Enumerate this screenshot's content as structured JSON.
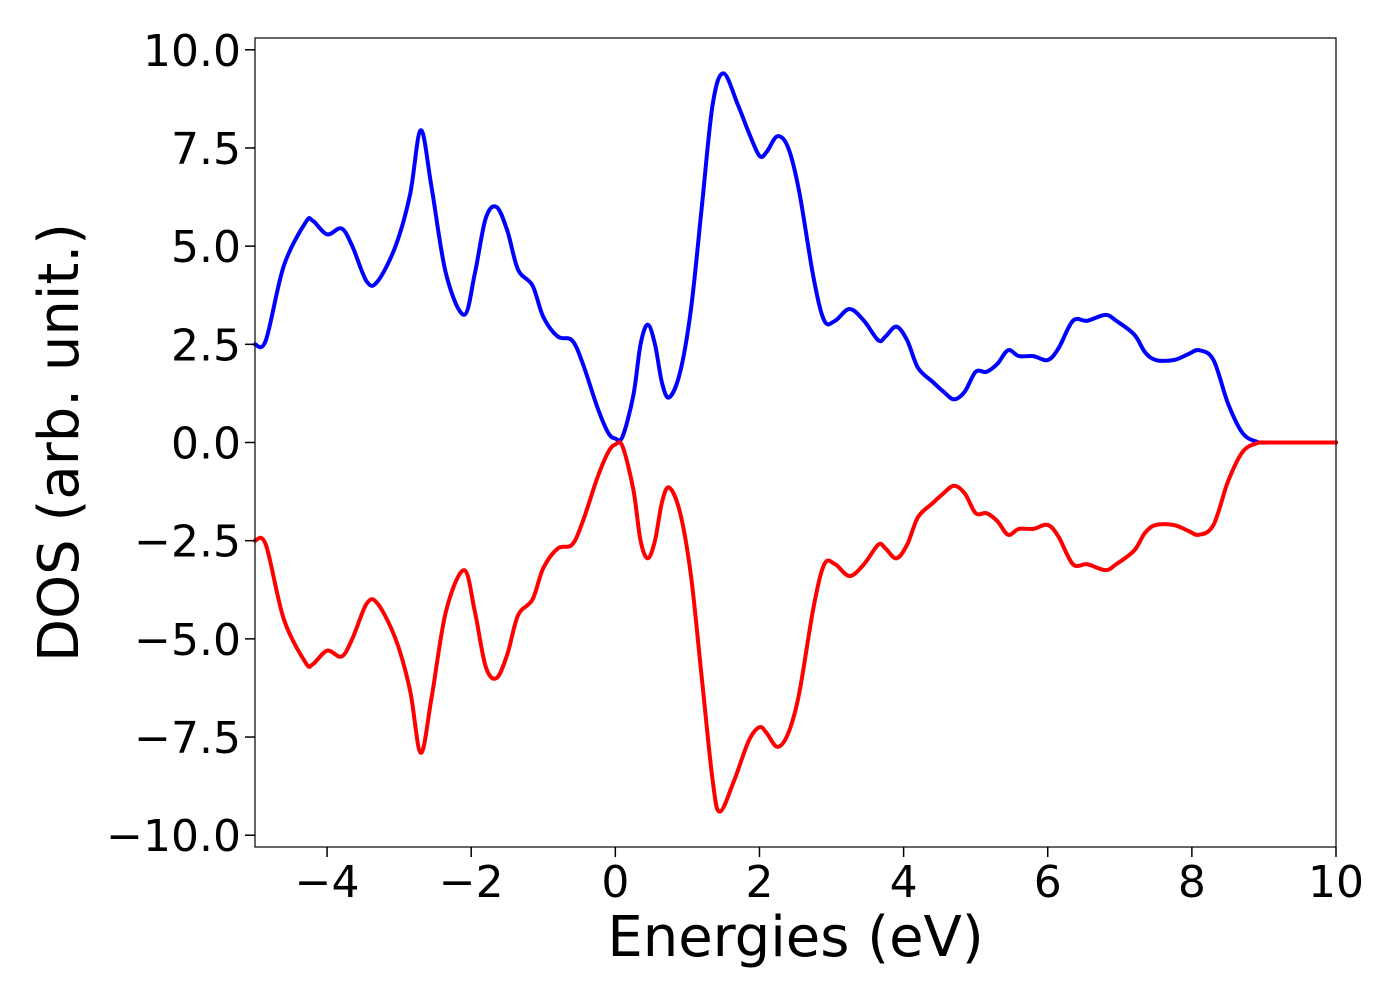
{
  "chart_data": {
    "type": "line",
    "title": "",
    "xlabel": "Energies (eV)",
    "ylabel": "DOS (arb. unit.)",
    "xlim": [
      -5,
      10
    ],
    "ylim": [
      -10.3,
      10.3
    ],
    "grid": false,
    "legend": "none",
    "x_ticks": [
      -4,
      -2,
      0,
      2,
      4,
      6,
      8,
      10
    ],
    "x_tick_labels": [
      "−4",
      "−2",
      "0",
      "2",
      "4",
      "6",
      "8",
      "10"
    ],
    "y_ticks": [
      10,
      7.5,
      5,
      2.5,
      0,
      -2.5,
      -5,
      -7.5,
      -10
    ],
    "y_tick_labels": [
      "10.0",
      "7.5",
      "5.0",
      "2.5",
      "0.0",
      "−2.5",
      "−5.0",
      "−7.5",
      "−10.0"
    ],
    "series": [
      {
        "color": "#0000ff",
        "points": [
          [
            -5.0,
            2.5
          ],
          [
            -4.85,
            2.6
          ],
          [
            -4.6,
            4.5
          ],
          [
            -4.3,
            5.6
          ],
          [
            -4.2,
            5.65
          ],
          [
            -4.0,
            5.3
          ],
          [
            -3.8,
            5.45
          ],
          [
            -3.65,
            5.0
          ],
          [
            -3.45,
            4.1
          ],
          [
            -3.3,
            4.1
          ],
          [
            -3.05,
            5.0
          ],
          [
            -2.85,
            6.3
          ],
          [
            -2.7,
            7.95
          ],
          [
            -2.55,
            6.5
          ],
          [
            -2.35,
            4.3
          ],
          [
            -2.1,
            3.25
          ],
          [
            -1.95,
            4.3
          ],
          [
            -1.8,
            5.7
          ],
          [
            -1.65,
            6.0
          ],
          [
            -1.5,
            5.4
          ],
          [
            -1.35,
            4.4
          ],
          [
            -1.15,
            4.0
          ],
          [
            -1.0,
            3.2
          ],
          [
            -0.8,
            2.7
          ],
          [
            -0.6,
            2.6
          ],
          [
            -0.45,
            2.0
          ],
          [
            -0.25,
            0.9
          ],
          [
            -0.1,
            0.25
          ],
          [
            0.0,
            0.1
          ],
          [
            0.1,
            0.15
          ],
          [
            0.25,
            1.2
          ],
          [
            0.35,
            2.5
          ],
          [
            0.45,
            3.0
          ],
          [
            0.55,
            2.5
          ],
          [
            0.65,
            1.5
          ],
          [
            0.75,
            1.15
          ],
          [
            0.9,
            1.8
          ],
          [
            1.05,
            3.4
          ],
          [
            1.2,
            6.0
          ],
          [
            1.35,
            8.6
          ],
          [
            1.5,
            9.4
          ],
          [
            1.7,
            8.6
          ],
          [
            1.85,
            7.9
          ],
          [
            2.0,
            7.3
          ],
          [
            2.1,
            7.4
          ],
          [
            2.25,
            7.8
          ],
          [
            2.4,
            7.5
          ],
          [
            2.55,
            6.4
          ],
          [
            2.75,
            4.2
          ],
          [
            2.9,
            3.1
          ],
          [
            3.05,
            3.1
          ],
          [
            3.25,
            3.4
          ],
          [
            3.45,
            3.1
          ],
          [
            3.65,
            2.6
          ],
          [
            3.75,
            2.7
          ],
          [
            3.9,
            2.95
          ],
          [
            4.05,
            2.6
          ],
          [
            4.2,
            1.9
          ],
          [
            4.4,
            1.55
          ],
          [
            4.55,
            1.3
          ],
          [
            4.7,
            1.1
          ],
          [
            4.85,
            1.3
          ],
          [
            5.0,
            1.8
          ],
          [
            5.15,
            1.8
          ],
          [
            5.3,
            2.0
          ],
          [
            5.45,
            2.35
          ],
          [
            5.6,
            2.2
          ],
          [
            5.8,
            2.2
          ],
          [
            6.0,
            2.1
          ],
          [
            6.15,
            2.4
          ],
          [
            6.35,
            3.1
          ],
          [
            6.55,
            3.1
          ],
          [
            6.8,
            3.25
          ],
          [
            6.95,
            3.1
          ],
          [
            7.2,
            2.75
          ],
          [
            7.35,
            2.3
          ],
          [
            7.5,
            2.1
          ],
          [
            7.75,
            2.1
          ],
          [
            7.95,
            2.25
          ],
          [
            8.1,
            2.35
          ],
          [
            8.3,
            2.1
          ],
          [
            8.5,
            1.0
          ],
          [
            8.7,
            0.25
          ],
          [
            8.9,
            0.02
          ],
          [
            9.1,
            0.0
          ],
          [
            10.0,
            0.0
          ]
        ]
      },
      {
        "color": "#ff0000",
        "points": [
          [
            -5.0,
            -2.5
          ],
          [
            -4.85,
            -2.6
          ],
          [
            -4.6,
            -4.5
          ],
          [
            -4.3,
            -5.6
          ],
          [
            -4.2,
            -5.65
          ],
          [
            -4.0,
            -5.3
          ],
          [
            -3.8,
            -5.45
          ],
          [
            -3.65,
            -5.0
          ],
          [
            -3.45,
            -4.1
          ],
          [
            -3.3,
            -4.1
          ],
          [
            -3.05,
            -5.0
          ],
          [
            -2.85,
            -6.3
          ],
          [
            -2.7,
            -7.9
          ],
          [
            -2.55,
            -6.5
          ],
          [
            -2.35,
            -4.3
          ],
          [
            -2.1,
            -3.25
          ],
          [
            -1.95,
            -4.3
          ],
          [
            -1.8,
            -5.7
          ],
          [
            -1.65,
            -6.0
          ],
          [
            -1.5,
            -5.4
          ],
          [
            -1.35,
            -4.4
          ],
          [
            -1.15,
            -4.0
          ],
          [
            -1.0,
            -3.2
          ],
          [
            -0.8,
            -2.7
          ],
          [
            -0.6,
            -2.6
          ],
          [
            -0.45,
            -2.0
          ],
          [
            -0.25,
            -0.9
          ],
          [
            -0.1,
            -0.25
          ],
          [
            0.0,
            -0.05
          ],
          [
            0.1,
            -0.1
          ],
          [
            0.25,
            -1.2
          ],
          [
            0.35,
            -2.5
          ],
          [
            0.45,
            -2.95
          ],
          [
            0.55,
            -2.5
          ],
          [
            0.65,
            -1.5
          ],
          [
            0.75,
            -1.15
          ],
          [
            0.9,
            -1.8
          ],
          [
            1.05,
            -3.4
          ],
          [
            1.2,
            -6.0
          ],
          [
            1.35,
            -8.6
          ],
          [
            1.45,
            -9.4
          ],
          [
            1.65,
            -8.6
          ],
          [
            1.85,
            -7.6
          ],
          [
            2.0,
            -7.25
          ],
          [
            2.1,
            -7.4
          ],
          [
            2.25,
            -7.75
          ],
          [
            2.4,
            -7.4
          ],
          [
            2.55,
            -6.4
          ],
          [
            2.75,
            -4.2
          ],
          [
            2.9,
            -3.1
          ],
          [
            3.05,
            -3.1
          ],
          [
            3.25,
            -3.4
          ],
          [
            3.45,
            -3.1
          ],
          [
            3.65,
            -2.6
          ],
          [
            3.75,
            -2.7
          ],
          [
            3.9,
            -2.95
          ],
          [
            4.05,
            -2.6
          ],
          [
            4.2,
            -1.9
          ],
          [
            4.4,
            -1.55
          ],
          [
            4.55,
            -1.3
          ],
          [
            4.7,
            -1.1
          ],
          [
            4.85,
            -1.3
          ],
          [
            5.0,
            -1.8
          ],
          [
            5.15,
            -1.8
          ],
          [
            5.3,
            -2.0
          ],
          [
            5.45,
            -2.35
          ],
          [
            5.6,
            -2.2
          ],
          [
            5.8,
            -2.2
          ],
          [
            6.0,
            -2.1
          ],
          [
            6.15,
            -2.4
          ],
          [
            6.35,
            -3.1
          ],
          [
            6.55,
            -3.1
          ],
          [
            6.8,
            -3.25
          ],
          [
            6.95,
            -3.1
          ],
          [
            7.2,
            -2.75
          ],
          [
            7.35,
            -2.3
          ],
          [
            7.5,
            -2.1
          ],
          [
            7.75,
            -2.1
          ],
          [
            7.95,
            -2.25
          ],
          [
            8.1,
            -2.35
          ],
          [
            8.3,
            -2.1
          ],
          [
            8.5,
            -1.0
          ],
          [
            8.7,
            -0.25
          ],
          [
            8.9,
            -0.02
          ],
          [
            9.1,
            0.0
          ],
          [
            10.0,
            0.0
          ]
        ]
      }
    ]
  }
}
